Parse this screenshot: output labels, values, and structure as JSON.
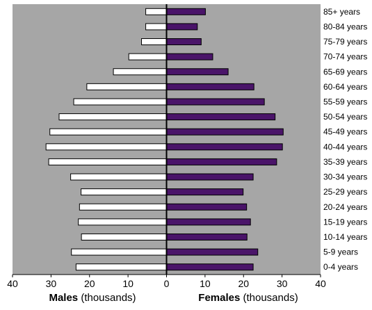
{
  "chart_data": {
    "type": "bar",
    "orientation": "horizontal",
    "layout": "population-pyramid",
    "categories": [
      "85+ years",
      "80-84 years",
      "75-79 years",
      "70-74 years",
      "65-69 years",
      "60-64 years",
      "55-59 years",
      "50-54 years",
      "45-49 years",
      "40-44 years",
      "35-39 years",
      "30-34 years",
      "25-29 years",
      "20-24 years",
      "15-19 years",
      "10-14 years",
      "5-9 years",
      "0-4 years"
    ],
    "series": [
      {
        "name": "Males",
        "color": "#ffffff",
        "side": "left",
        "values": [
          5.4,
          5.4,
          6.5,
          9.8,
          13.8,
          20.7,
          24.1,
          27.9,
          30.3,
          31.3,
          30.6,
          24.9,
          22.2,
          22.6,
          22.9,
          22.1,
          24.7,
          23.5
        ]
      },
      {
        "name": "Females",
        "color": "#4a1469",
        "side": "right",
        "values": [
          10.1,
          8.0,
          9.0,
          12.0,
          16.0,
          22.7,
          25.4,
          28.2,
          30.3,
          30.1,
          28.6,
          22.5,
          19.9,
          20.8,
          21.8,
          20.9,
          23.7,
          22.5
        ]
      }
    ],
    "xlim": [
      -40,
      40
    ],
    "x_ticks": [
      40,
      30,
      20,
      10,
      0,
      10,
      20,
      30,
      40
    ],
    "xlabel_left": {
      "bold": "Males",
      "rest": " (thousands)"
    },
    "xlabel_right": {
      "bold": "Females",
      "rest": " (thousands)"
    },
    "plot_background": "#a6a6a6",
    "grid": false
  }
}
